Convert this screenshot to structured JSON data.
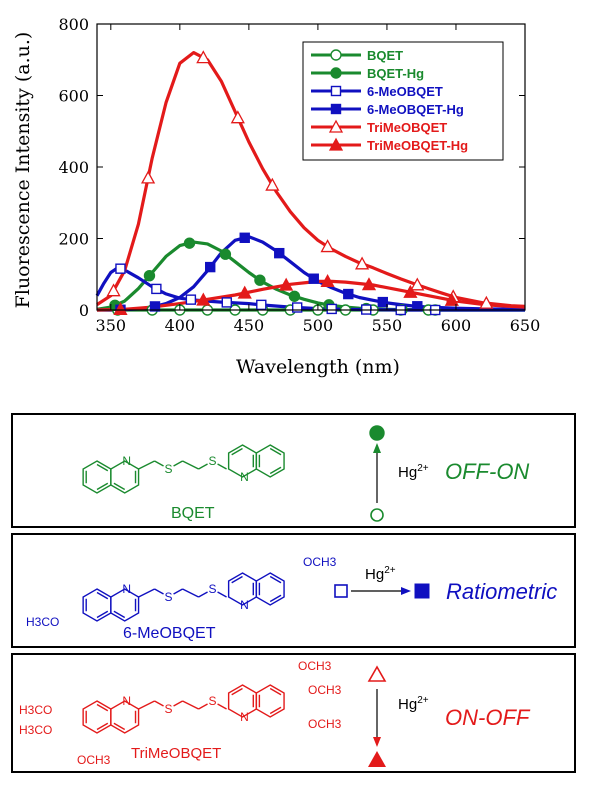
{
  "chart_data": {
    "type": "line",
    "xlabel": "Wavelength (nm)",
    "ylabel": "Fluorescence Intensity (a.u.)",
    "xlim": [
      340,
      650
    ],
    "ylim": [
      0,
      800
    ],
    "xticks": [
      350,
      400,
      450,
      500,
      550,
      600,
      650
    ],
    "yticks": [
      0,
      200,
      400,
      600,
      800
    ],
    "legend_position": "top-right",
    "series": [
      {
        "name": "BQET",
        "color": "#1a8a2e",
        "marker": "circle-open",
        "x": [
          340,
          350,
          355,
          360,
          380,
          400,
          420,
          440,
          460,
          480,
          500,
          520,
          540,
          560,
          580,
          600,
          620,
          640,
          650
        ],
        "y": [
          0,
          0,
          0,
          0,
          0,
          0,
          0,
          0,
          0,
          0,
          0,
          0,
          0,
          0,
          0,
          0,
          0,
          0,
          0
        ],
        "marker_x": [
          355,
          380,
          400,
          420,
          440,
          460,
          480,
          500,
          520,
          540,
          560,
          580
        ]
      },
      {
        "name": "BQET-Hg",
        "color": "#1a8a2e",
        "marker": "circle-filled",
        "x": [
          340,
          350,
          360,
          370,
          380,
          390,
          400,
          410,
          420,
          430,
          440,
          450,
          460,
          470,
          480,
          490,
          500,
          510,
          520,
          530,
          540,
          550,
          560,
          570,
          580,
          600,
          620,
          640,
          650
        ],
        "y": [
          2,
          8,
          25,
          60,
          105,
          150,
          180,
          190,
          185,
          165,
          135,
          105,
          78,
          58,
          42,
          30,
          20,
          13,
          8,
          5,
          3,
          2,
          1,
          1,
          0,
          0,
          0,
          0,
          0
        ],
        "marker_x": [
          353,
          378,
          407,
          433,
          458,
          483,
          508,
          535,
          561,
          585
        ]
      },
      {
        "name": "6-MeOBQET",
        "color": "#1010c0",
        "marker": "square-open",
        "x": [
          340,
          345,
          350,
          355,
          360,
          370,
          380,
          390,
          400,
          410,
          420,
          430,
          440,
          450,
          460,
          480,
          500,
          520,
          540,
          560,
          580,
          600,
          620,
          640,
          650
        ],
        "y": [
          40,
          75,
          105,
          118,
          112,
          90,
          65,
          45,
          33,
          28,
          25,
          22,
          20,
          18,
          14,
          8,
          4,
          2,
          1,
          0,
          0,
          0,
          0,
          0,
          0
        ],
        "marker_x": [
          357,
          383,
          408,
          434,
          459,
          485,
          510,
          535,
          560,
          585
        ]
      },
      {
        "name": "6-MeOBQET-Hg",
        "color": "#1010c0",
        "marker": "square-filled",
        "x": [
          340,
          350,
          360,
          370,
          380,
          390,
          400,
          410,
          420,
          430,
          440,
          450,
          460,
          470,
          480,
          490,
          500,
          510,
          520,
          530,
          540,
          550,
          560,
          570,
          580,
          600,
          620,
          640,
          650
        ],
        "y": [
          0,
          0,
          1,
          3,
          8,
          18,
          35,
          65,
          110,
          160,
          195,
          205,
          190,
          165,
          135,
          105,
          80,
          62,
          47,
          35,
          27,
          20,
          15,
          11,
          8,
          5,
          3,
          2,
          1
        ],
        "marker_x": [
          357,
          382,
          422,
          447,
          472,
          497,
          522,
          547,
          572
        ]
      },
      {
        "name": "TriMeOBQET",
        "color": "#e31a1a",
        "marker": "triangle-open",
        "x": [
          340,
          350,
          360,
          370,
          380,
          390,
          400,
          410,
          420,
          430,
          440,
          450,
          460,
          470,
          480,
          490,
          500,
          510,
          520,
          530,
          540,
          550,
          560,
          570,
          580,
          590,
          600,
          620,
          640,
          650
        ],
        "y": [
          15,
          40,
          110,
          240,
          425,
          580,
          690,
          720,
          700,
          640,
          555,
          470,
          395,
          330,
          275,
          230,
          195,
          170,
          150,
          132,
          118,
          102,
          87,
          73,
          60,
          47,
          35,
          20,
          12,
          10
        ],
        "marker_x": [
          352,
          377,
          417,
          442,
          467,
          507,
          532,
          572,
          598,
          622
        ]
      },
      {
        "name": "TriMeOBQET-Hg",
        "color": "#e31a1a",
        "marker": "triangle-filled",
        "x": [
          340,
          360,
          380,
          400,
          420,
          440,
          460,
          480,
          500,
          510,
          520,
          540,
          560,
          580,
          600,
          620,
          640,
          650
        ],
        "y": [
          0,
          2,
          8,
          18,
          30,
          42,
          58,
          72,
          80,
          80,
          78,
          70,
          55,
          40,
          25,
          15,
          10,
          8
        ],
        "marker_x": [
          357,
          417,
          447,
          477,
          507,
          537,
          567,
          597
        ]
      }
    ]
  },
  "panels": [
    {
      "compound": "BQET",
      "color": "#1a8a2e",
      "response": "OFF-ON",
      "reagent": "Hg",
      "reagent_sup": "2+",
      "marker_before": "circle-open",
      "marker_after": "circle-filled",
      "arrow": "up"
    },
    {
      "compound": "6-MeOBQET",
      "color": "#1010c0",
      "response": "Ratiometric",
      "reagent": "Hg",
      "reagent_sup": "2+",
      "marker_before": "square-open",
      "marker_after": "square-filled",
      "arrow": "right",
      "substituents": {
        "left": "H3CO",
        "right": "OCH3"
      }
    },
    {
      "compound": "TriMeOBQET",
      "color": "#e31a1a",
      "response": "ON-OFF",
      "reagent": "Hg",
      "reagent_sup": "2+",
      "marker_before": "triangle-open",
      "marker_after": "triangle-filled",
      "arrow": "down",
      "substituents": {
        "left": [
          "H3CO",
          "H3CO",
          "OCH3"
        ],
        "right": [
          "OCH3",
          "OCH3",
          "OCH3"
        ]
      }
    }
  ],
  "atoms": {
    "N": "N",
    "S": "S"
  }
}
